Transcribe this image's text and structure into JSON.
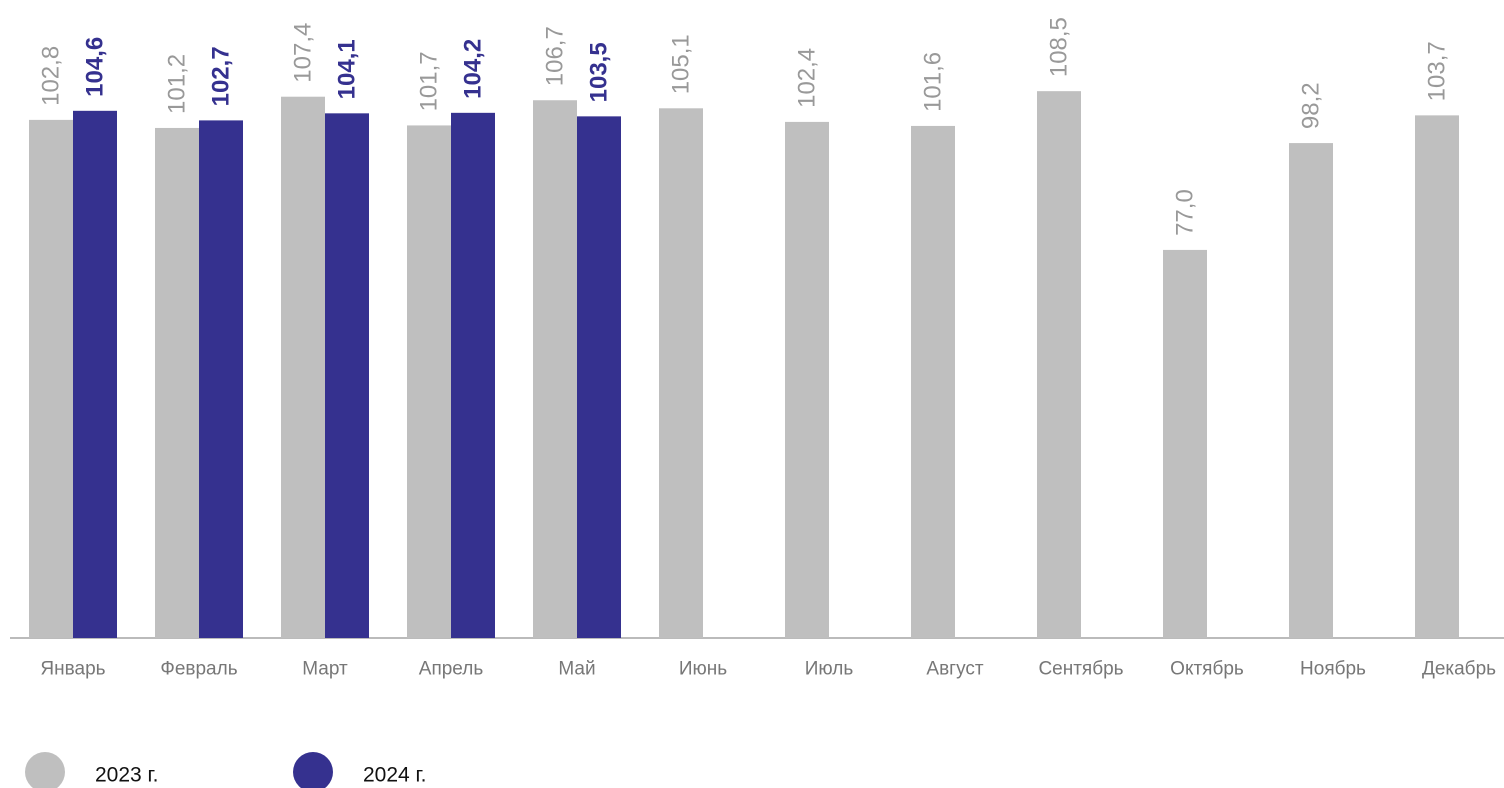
{
  "chart_data": {
    "type": "bar",
    "categories": [
      "Январь",
      "Февраль",
      "Март",
      "Апрель",
      "Май",
      "Июнь",
      "Июль",
      "Август",
      "Сентябрь",
      "Октябрь",
      "Ноябрь",
      "Декабрь"
    ],
    "series": [
      {
        "name": "2023 г.",
        "color": "#bfbfbf",
        "values": [
          102.8,
          101.2,
          107.4,
          101.7,
          106.7,
          105.1,
          102.4,
          101.6,
          108.5,
          77.0,
          98.2,
          103.7
        ],
        "value_labels": [
          "102,8",
          "101,2",
          "107,4",
          "101,7",
          "106,7",
          "105,1",
          "102,4",
          "101,6",
          "108,5",
          "77,0",
          "98,2",
          "103,7"
        ]
      },
      {
        "name": "2024 г.",
        "color": "#35318f",
        "values": [
          104.6,
          102.7,
          104.1,
          104.2,
          103.5,
          null,
          null,
          null,
          null,
          null,
          null,
          null
        ],
        "value_labels": [
          "104,6",
          "102,7",
          "104,1",
          "104,2",
          "103,5",
          null,
          null,
          null,
          null,
          null,
          null,
          null
        ]
      }
    ],
    "ylim": [
      0,
      125
    ]
  }
}
